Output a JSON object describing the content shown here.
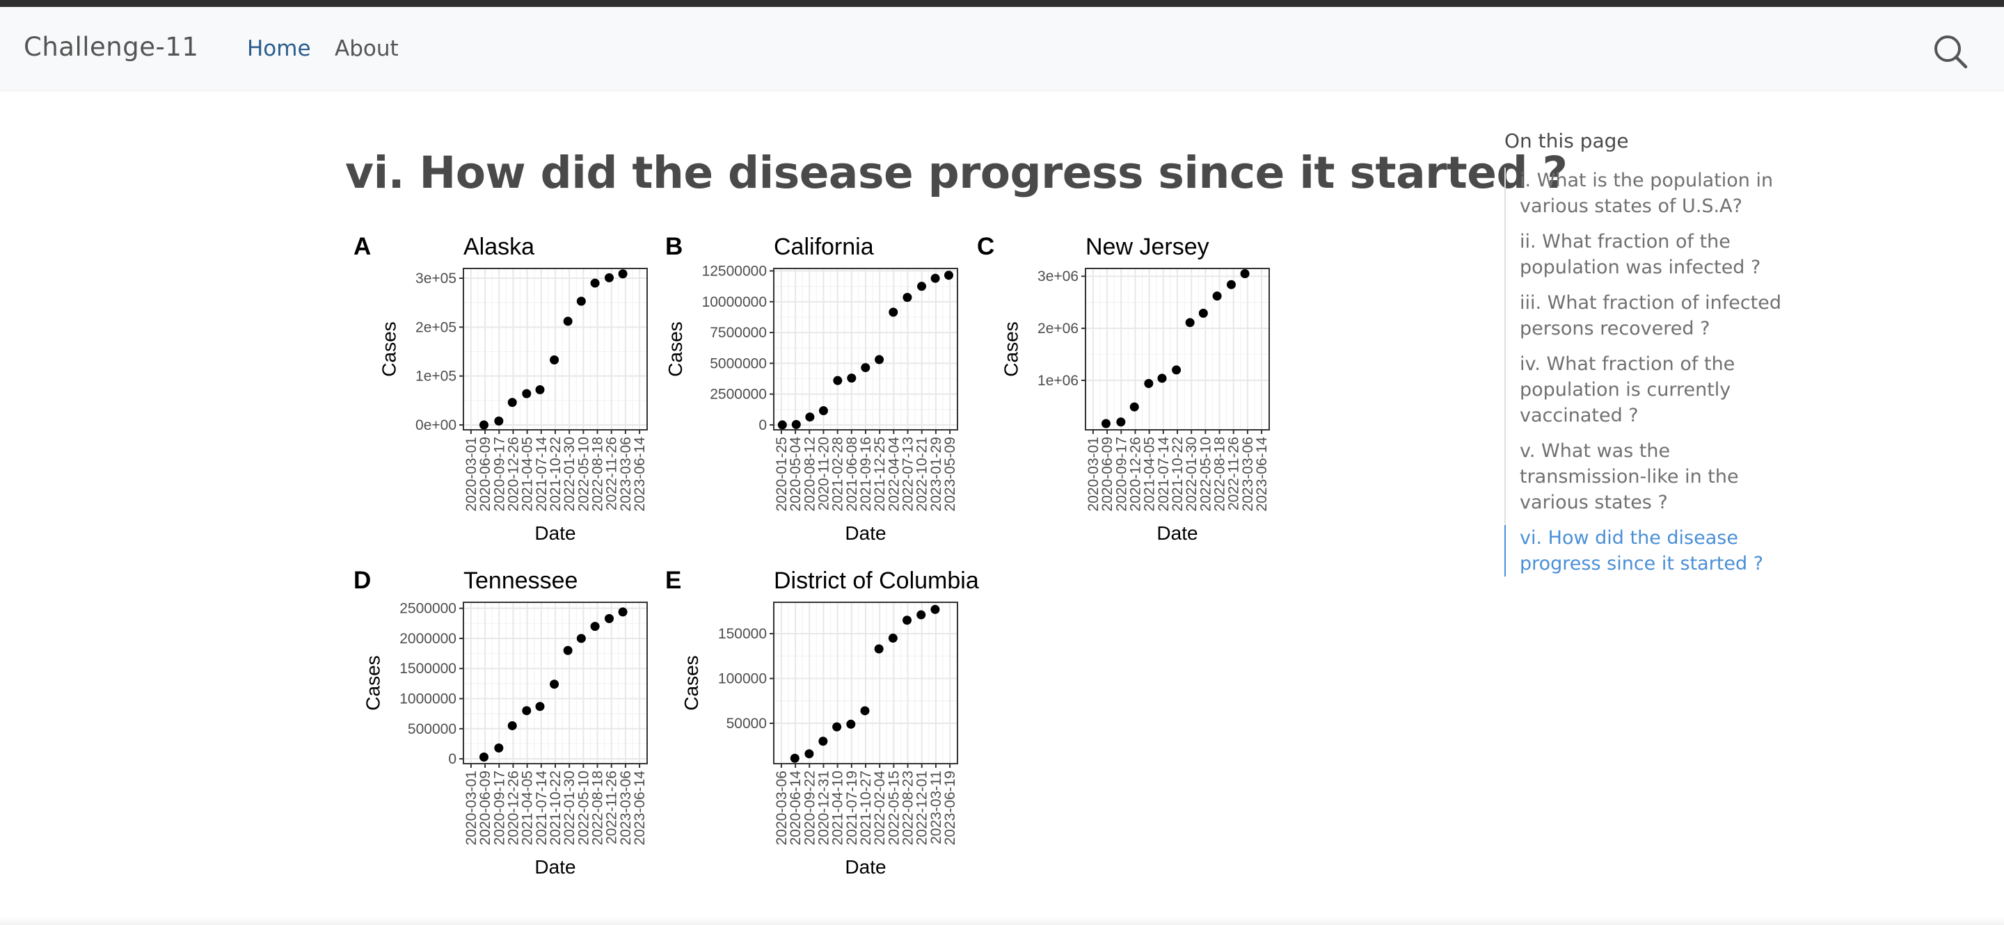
{
  "navbar": {
    "brand": "Challenge-11",
    "links": [
      {
        "label": "Home",
        "active": true
      },
      {
        "label": "About",
        "active": false
      }
    ],
    "search_icon": "search-icon"
  },
  "page": {
    "title": "vi. How did the disease progress since it started ?"
  },
  "toc": {
    "title": "On this page",
    "items": [
      {
        "label": "i. What is the population in various states of U.S.A?",
        "active": false
      },
      {
        "label": "ii. What fraction of the population was infected ?",
        "active": false
      },
      {
        "label": "iii. What fraction of infected persons recovered ?",
        "active": false
      },
      {
        "label": "iv. What fraction of the population is currently vaccinated ?",
        "active": false
      },
      {
        "label": "v. What was the transmission-like in the various states ?",
        "active": false
      },
      {
        "label": "vi. How did the disease progress since it started ?",
        "active": true
      }
    ]
  },
  "chart_data": [
    {
      "type": "scatter",
      "panel": "A",
      "title": "Alaska",
      "xlabel": "Date",
      "ylabel": "Cases",
      "xticks": [
        "2020-03-01",
        "2020-06-09",
        "2020-09-17",
        "2020-12-26",
        "2021-04-05",
        "2021-07-14",
        "2021-10-22",
        "2022-01-30",
        "2022-05-10",
        "2022-08-18",
        "2022-11-26",
        "2023-03-06",
        "2023-06-14"
      ],
      "yticks": [
        {
          "value": 0,
          "label": "0e+00"
        },
        {
          "value": 100000,
          "label": "1e+05"
        },
        {
          "value": 200000,
          "label": "2e+05"
        },
        {
          "value": 300000,
          "label": "3e+05"
        }
      ],
      "ylim": [
        -10000,
        320000
      ],
      "x": [
        "2020-06-01",
        "2020-09-15",
        "2020-12-20",
        "2021-04-01",
        "2021-07-05",
        "2021-10-15",
        "2022-01-20",
        "2022-04-25",
        "2022-08-01",
        "2022-11-10",
        "2023-02-15"
      ],
      "y": [
        0,
        8000,
        46000,
        64000,
        72000,
        133000,
        212000,
        253000,
        290000,
        301000,
        309000
      ]
    },
    {
      "type": "scatter",
      "panel": "B",
      "title": "California",
      "xlabel": "Date",
      "ylabel": "Cases",
      "xticks": [
        "2020-01-25",
        "2020-05-04",
        "2020-08-12",
        "2020-11-20",
        "2021-02-28",
        "2021-06-08",
        "2021-09-16",
        "2021-12-25",
        "2022-04-04",
        "2022-07-13",
        "2022-10-21",
        "2023-01-29",
        "2023-05-09"
      ],
      "yticks": [
        {
          "value": 0,
          "label": "0"
        },
        {
          "value": 2500000,
          "label": "2500000"
        },
        {
          "value": 5000000,
          "label": "5000000"
        },
        {
          "value": 7500000,
          "label": "7500000"
        },
        {
          "value": 10000000,
          "label": "10000000"
        },
        {
          "value": 12500000,
          "label": "12500000"
        }
      ],
      "ylim": [
        -400000,
        12700000
      ],
      "x": [
        "2020-02-01",
        "2020-05-10",
        "2020-08-15",
        "2020-11-20",
        "2021-03-01",
        "2021-06-08",
        "2021-09-15",
        "2021-12-22",
        "2022-04-01",
        "2022-07-10",
        "2022-10-20",
        "2023-01-25",
        "2023-05-01"
      ],
      "y": [
        0,
        30000,
        640000,
        1150000,
        3600000,
        3800000,
        4650000,
        5300000,
        9150000,
        10350000,
        11250000,
        11900000,
        12150000
      ]
    },
    {
      "type": "scatter",
      "panel": "C",
      "title": "New Jersey",
      "xlabel": "Date",
      "ylabel": "Cases",
      "xticks": [
        "2020-03-01",
        "2020-06-09",
        "2020-09-17",
        "2020-12-26",
        "2021-04-05",
        "2021-07-14",
        "2021-10-22",
        "2022-01-30",
        "2022-05-10",
        "2022-08-18",
        "2022-11-26",
        "2023-03-06",
        "2023-06-14"
      ],
      "yticks": [
        {
          "value": 1000000,
          "label": "1e+06"
        },
        {
          "value": 2000000,
          "label": "2e+06"
        },
        {
          "value": 3000000,
          "label": "3e+06"
        }
      ],
      "ylim": [
        50000,
        3150000
      ],
      "x": [
        "2020-06-01",
        "2020-09-15",
        "2020-12-20",
        "2021-04-01",
        "2021-07-05",
        "2021-10-15",
        "2022-01-20",
        "2022-04-25",
        "2022-08-01",
        "2022-11-10",
        "2023-02-15"
      ],
      "y": [
        170000,
        200000,
        490000,
        940000,
        1040000,
        1200000,
        2110000,
        2290000,
        2620000,
        2840000,
        3050000
      ]
    },
    {
      "type": "scatter",
      "panel": "D",
      "title": "Tennessee",
      "xlabel": "Date",
      "ylabel": "Cases",
      "xticks": [
        "2020-03-01",
        "2020-06-09",
        "2020-09-17",
        "2020-12-26",
        "2021-04-05",
        "2021-07-14",
        "2021-10-22",
        "2022-01-30",
        "2022-05-10",
        "2022-08-18",
        "2022-11-26",
        "2023-03-06",
        "2023-06-14"
      ],
      "yticks": [
        {
          "value": 0,
          "label": "0"
        },
        {
          "value": 500000,
          "label": "500000"
        },
        {
          "value": 1000000,
          "label": "1000000"
        },
        {
          "value": 1500000,
          "label": "1500000"
        },
        {
          "value": 2000000,
          "label": "2000000"
        },
        {
          "value": 2500000,
          "label": "2500000"
        }
      ],
      "ylim": [
        -80000,
        2600000
      ],
      "x": [
        "2020-06-01",
        "2020-09-15",
        "2020-12-20",
        "2021-04-01",
        "2021-07-05",
        "2021-10-15",
        "2022-01-20",
        "2022-04-25",
        "2022-08-01",
        "2022-11-10",
        "2023-02-15"
      ],
      "y": [
        30000,
        180000,
        550000,
        800000,
        870000,
        1240000,
        1800000,
        2000000,
        2200000,
        2330000,
        2440000
      ]
    },
    {
      "type": "scatter",
      "panel": "E",
      "title": "District of Columbia",
      "xlabel": "Date",
      "ylabel": "Cases",
      "xticks": [
        "2020-03-06",
        "2020-06-14",
        "2020-09-22",
        "2020-12-31",
        "2021-04-10",
        "2021-07-19",
        "2021-10-27",
        "2022-02-04",
        "2022-05-15",
        "2022-08-23",
        "2022-12-01",
        "2023-03-11",
        "2023-06-19"
      ],
      "yticks": [
        {
          "value": 50000,
          "label": "50000"
        },
        {
          "value": 100000,
          "label": "100000"
        },
        {
          "value": 150000,
          "label": "150000"
        }
      ],
      "ylim": [
        5000,
        185000
      ],
      "x": [
        "2020-06-10",
        "2020-09-20",
        "2020-12-28",
        "2021-04-05",
        "2021-07-14",
        "2021-10-22",
        "2022-01-30",
        "2022-05-10",
        "2022-08-18",
        "2022-11-26",
        "2023-03-06"
      ],
      "y": [
        11000,
        16000,
        30000,
        46000,
        49000,
        64000,
        133000,
        145000,
        165000,
        171000,
        177000
      ]
    }
  ]
}
